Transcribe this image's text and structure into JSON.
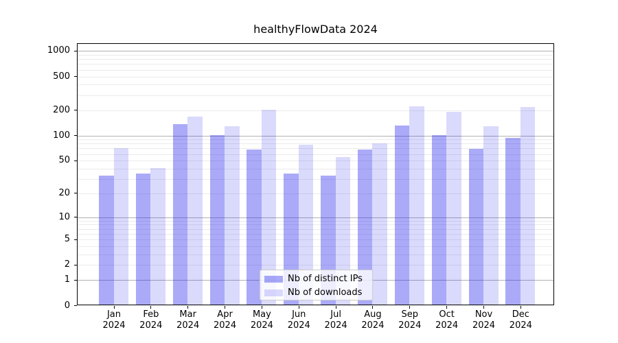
{
  "title": "healthyFlowData 2024",
  "legend": {
    "position": "lower center",
    "items": [
      {
        "label": "Nb of distinct IPs",
        "color": "rgba(25,25,235,0.37)"
      },
      {
        "label": "Nb of downloads",
        "color": "rgba(25,25,235,0.16)"
      }
    ]
  },
  "chart_data": {
    "type": "bar",
    "title": "healthyFlowData 2024",
    "categories": [
      {
        "month": "Jan",
        "year": "2024"
      },
      {
        "month": "Feb",
        "year": "2024"
      },
      {
        "month": "Mar",
        "year": "2024"
      },
      {
        "month": "Apr",
        "year": "2024"
      },
      {
        "month": "May",
        "year": "2024"
      },
      {
        "month": "Jun",
        "year": "2024"
      },
      {
        "month": "Jul",
        "year": "2024"
      },
      {
        "month": "Aug",
        "year": "2024"
      },
      {
        "month": "Sep",
        "year": "2024"
      },
      {
        "month": "Oct",
        "year": "2024"
      },
      {
        "month": "Nov",
        "year": "2024"
      },
      {
        "month": "Dec",
        "year": "2024"
      }
    ],
    "series": [
      {
        "name": "Nb of distinct IPs",
        "color": "rgba(25,25,235,0.37)",
        "values": [
          33,
          35,
          136,
          101,
          68,
          35,
          33,
          68,
          132,
          101,
          70,
          94
        ]
      },
      {
        "name": "Nb of downloads",
        "color": "rgba(25,25,235,0.16)",
        "values": [
          71,
          41,
          167,
          130,
          201,
          78,
          55,
          81,
          222,
          191,
          130,
          217
        ]
      }
    ],
    "yticks": [
      "1000",
      "500",
      "200",
      "100",
      "50",
      "20",
      "10",
      "5",
      "2",
      "1",
      "0"
    ],
    "ytick_values": [
      1000,
      500,
      200,
      100,
      50,
      20,
      10,
      5,
      2,
      1,
      0
    ],
    "yscale": "log10(1+v)",
    "ylim": [
      0,
      1232
    ],
    "xlabel": "",
    "ylabel": "",
    "grid": true,
    "grid_major_values": [
      1,
      10,
      100,
      1000
    ],
    "legend_position": "lower center"
  },
  "style": {
    "grid_major_color": "#b1b1b1",
    "grid_minor_color": "#ebebeb",
    "spine_color": "#000000",
    "legend_border_color": "#cccccc",
    "legend_bg": "rgba(255,255,255,0.8)",
    "background": "#ffffff"
  }
}
